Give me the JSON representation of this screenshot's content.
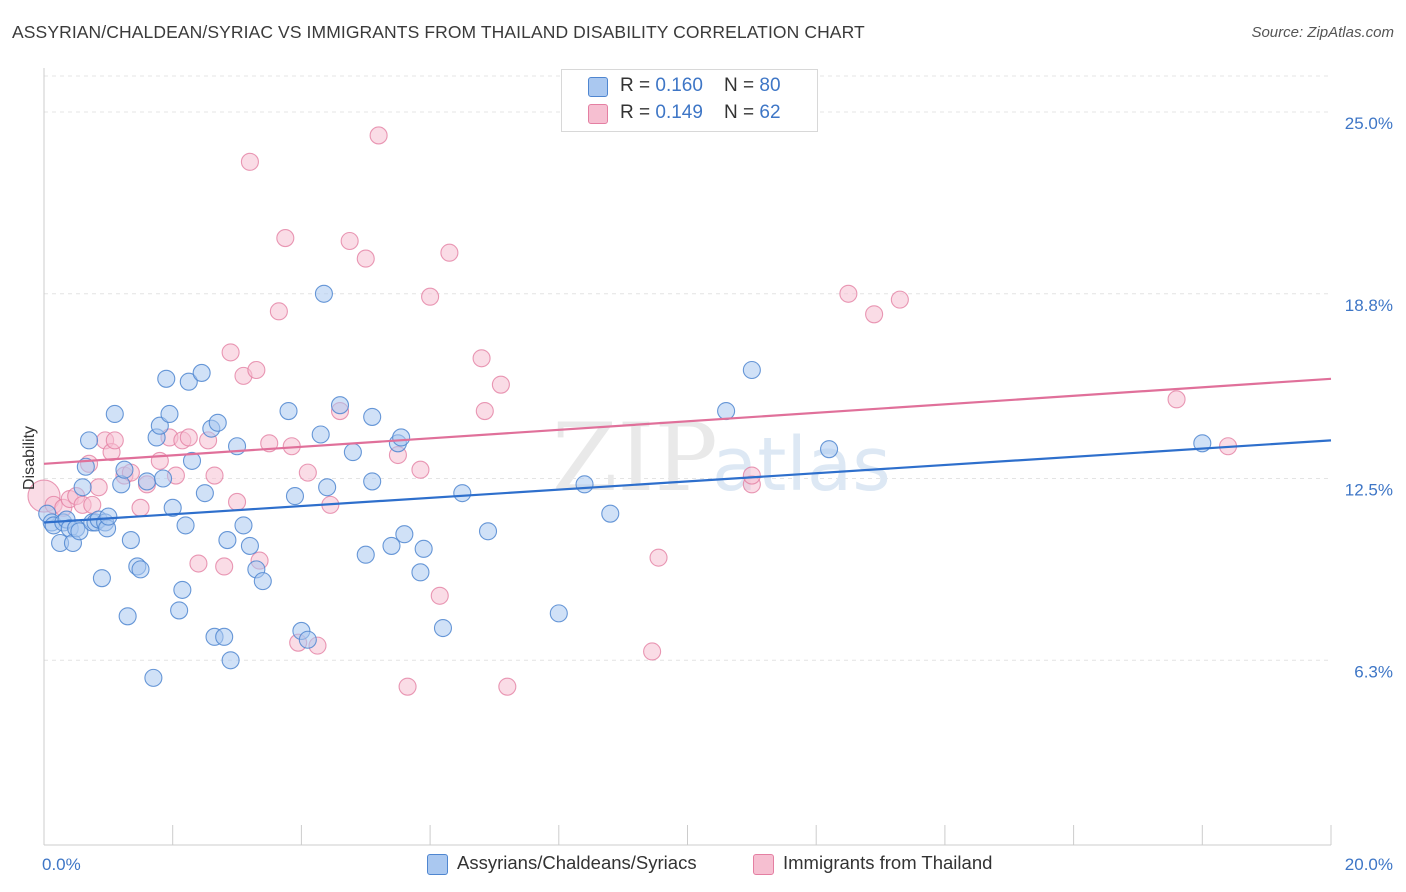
{
  "header": {
    "title": "ASSYRIAN/CHALDEAN/SYRIAC VS IMMIGRANTS FROM THAILAND DISABILITY CORRELATION CHART",
    "source": "Source: ZipAtlas.com"
  },
  "watermark": {
    "zip": "ZIP",
    "atlas": "atlas"
  },
  "legend_top": {
    "rows": [
      {
        "r_label": "R = ",
        "r_value": "0.160",
        "n_label": "N = ",
        "n_value": "80"
      },
      {
        "r_label": "R = ",
        "r_value": "0.149",
        "n_label": "N = ",
        "n_value": "62"
      }
    ]
  },
  "legend_bottom": {
    "items": [
      {
        "label": "Assyrians/Chaldeans/Syriacs"
      },
      {
        "label": "Immigrants from Thailand"
      }
    ]
  },
  "colors": {
    "blue_fill": "#aac8f0",
    "blue_stroke": "#4f86d0",
    "blue_line": "#2e6fcc",
    "pink_fill": "#f6bfd1",
    "pink_stroke": "#e47fa2",
    "pink_line": "#e0709a",
    "grid": "#e4e4e4",
    "tick_text": "#3e76c6"
  },
  "chart_data": {
    "type": "scatter",
    "title": "ASSYRIAN/CHALDEAN/SYRIAC VS IMMIGRANTS FROM THAILAND DISABILITY CORRELATION CHART",
    "xlabel": "",
    "ylabel": "Disability",
    "xlim": [
      0,
      20
    ],
    "ylim": [
      0,
      26.5
    ],
    "x_tick_labels": [
      "0.0%",
      "20.0%"
    ],
    "y_ticks": [
      6.3,
      12.5,
      18.8,
      25.0
    ],
    "y_tick_labels": [
      "6.3%",
      "12.5%",
      "18.8%",
      "25.0%"
    ],
    "grid": true,
    "legend_position": "top-center",
    "series": [
      {
        "name": "Assyrians/Chaldeans/Syriacs",
        "r": 0.16,
        "n": 80,
        "trend": {
          "x": [
            0,
            20
          ],
          "y": [
            11.0,
            13.8
          ]
        },
        "points": [
          [
            0.05,
            11.3
          ],
          [
            0.12,
            11.0
          ],
          [
            0.15,
            10.9
          ],
          [
            0.25,
            10.3
          ],
          [
            0.3,
            11.0
          ],
          [
            0.35,
            11.1
          ],
          [
            0.4,
            10.8
          ],
          [
            0.45,
            10.3
          ],
          [
            0.5,
            10.8
          ],
          [
            0.55,
            10.7
          ],
          [
            0.6,
            12.2
          ],
          [
            0.65,
            12.9
          ],
          [
            0.7,
            13.8
          ],
          [
            0.75,
            11.0
          ],
          [
            0.8,
            11.0
          ],
          [
            0.85,
            11.1
          ],
          [
            0.9,
            9.1
          ],
          [
            0.95,
            11.0
          ],
          [
            0.98,
            10.8
          ],
          [
            1.0,
            11.2
          ],
          [
            1.1,
            14.7
          ],
          [
            1.2,
            12.3
          ],
          [
            1.25,
            12.8
          ],
          [
            1.3,
            7.8
          ],
          [
            1.35,
            10.4
          ],
          [
            1.45,
            9.5
          ],
          [
            1.5,
            9.4
          ],
          [
            1.6,
            12.4
          ],
          [
            1.7,
            5.7
          ],
          [
            1.75,
            13.9
          ],
          [
            1.8,
            14.3
          ],
          [
            1.85,
            12.5
          ],
          [
            1.9,
            15.9
          ],
          [
            1.95,
            14.7
          ],
          [
            2.0,
            11.5
          ],
          [
            2.1,
            8.0
          ],
          [
            2.15,
            8.7
          ],
          [
            2.2,
            10.9
          ],
          [
            2.25,
            15.8
          ],
          [
            2.3,
            13.1
          ],
          [
            2.45,
            16.1
          ],
          [
            2.5,
            12.0
          ],
          [
            2.6,
            14.2
          ],
          [
            2.7,
            14.4
          ],
          [
            2.65,
            7.1
          ],
          [
            2.8,
            7.1
          ],
          [
            2.85,
            10.4
          ],
          [
            2.9,
            6.3
          ],
          [
            3.0,
            13.6
          ],
          [
            3.1,
            10.9
          ],
          [
            3.2,
            10.2
          ],
          [
            3.3,
            9.4
          ],
          [
            3.4,
            9.0
          ],
          [
            3.8,
            14.8
          ],
          [
            3.9,
            11.9
          ],
          [
            4.0,
            7.3
          ],
          [
            4.1,
            7.0
          ],
          [
            4.3,
            14.0
          ],
          [
            4.35,
            18.8
          ],
          [
            4.4,
            12.2
          ],
          [
            4.6,
            15.0
          ],
          [
            4.8,
            13.4
          ],
          [
            5.0,
            9.9
          ],
          [
            5.1,
            14.6
          ],
          [
            5.1,
            12.4
          ],
          [
            5.4,
            10.2
          ],
          [
            5.5,
            13.7
          ],
          [
            5.55,
            13.9
          ],
          [
            5.6,
            10.6
          ],
          [
            5.85,
            9.3
          ],
          [
            5.9,
            10.1
          ],
          [
            6.2,
            7.4
          ],
          [
            6.5,
            12.0
          ],
          [
            6.9,
            10.7
          ],
          [
            8.0,
            7.9
          ],
          [
            8.4,
            12.3
          ],
          [
            8.8,
            11.3
          ],
          [
            10.6,
            14.8
          ],
          [
            11.0,
            16.2
          ],
          [
            12.2,
            13.5
          ],
          [
            18.0,
            13.7
          ]
        ]
      },
      {
        "name": "Immigrants from Thailand",
        "r": 0.149,
        "n": 62,
        "trend": {
          "x": [
            0,
            20
          ],
          "y": [
            13.0,
            15.9
          ]
        },
        "points": [
          [
            0.0,
            11.9
          ],
          [
            0.15,
            11.6
          ],
          [
            0.3,
            11.5
          ],
          [
            0.4,
            11.8
          ],
          [
            0.5,
            11.9
          ],
          [
            0.6,
            11.6
          ],
          [
            0.7,
            13.0
          ],
          [
            0.75,
            11.6
          ],
          [
            0.85,
            12.2
          ],
          [
            0.95,
            13.8
          ],
          [
            1.05,
            13.4
          ],
          [
            1.1,
            13.8
          ],
          [
            1.25,
            12.6
          ],
          [
            1.35,
            12.7
          ],
          [
            1.5,
            11.5
          ],
          [
            1.6,
            12.3
          ],
          [
            1.8,
            13.1
          ],
          [
            1.95,
            13.9
          ],
          [
            2.05,
            12.6
          ],
          [
            2.15,
            13.8
          ],
          [
            2.25,
            13.9
          ],
          [
            2.4,
            9.6
          ],
          [
            2.55,
            13.8
          ],
          [
            2.65,
            12.6
          ],
          [
            2.8,
            9.5
          ],
          [
            2.9,
            16.8
          ],
          [
            3.0,
            11.7
          ],
          [
            3.1,
            16.0
          ],
          [
            3.2,
            23.3
          ],
          [
            3.3,
            16.2
          ],
          [
            3.35,
            9.7
          ],
          [
            3.5,
            13.7
          ],
          [
            3.65,
            18.2
          ],
          [
            3.75,
            20.7
          ],
          [
            3.85,
            13.6
          ],
          [
            3.95,
            6.9
          ],
          [
            4.1,
            12.7
          ],
          [
            4.25,
            6.8
          ],
          [
            4.45,
            11.6
          ],
          [
            4.6,
            14.8
          ],
          [
            4.75,
            20.6
          ],
          [
            5.0,
            20.0
          ],
          [
            5.2,
            24.2
          ],
          [
            5.5,
            13.3
          ],
          [
            5.65,
            5.4
          ],
          [
            5.85,
            12.8
          ],
          [
            6.0,
            18.7
          ],
          [
            6.15,
            8.5
          ],
          [
            6.3,
            20.2
          ],
          [
            6.8,
            16.6
          ],
          [
            6.85,
            14.8
          ],
          [
            7.1,
            15.7
          ],
          [
            7.2,
            5.4
          ],
          [
            9.45,
            6.6
          ],
          [
            9.55,
            9.8
          ],
          [
            11.0,
            12.3
          ],
          [
            11.0,
            12.6
          ],
          [
            12.5,
            18.8
          ],
          [
            12.9,
            18.1
          ],
          [
            13.3,
            18.6
          ],
          [
            17.6,
            15.2
          ],
          [
            18.4,
            13.6
          ]
        ]
      }
    ]
  }
}
